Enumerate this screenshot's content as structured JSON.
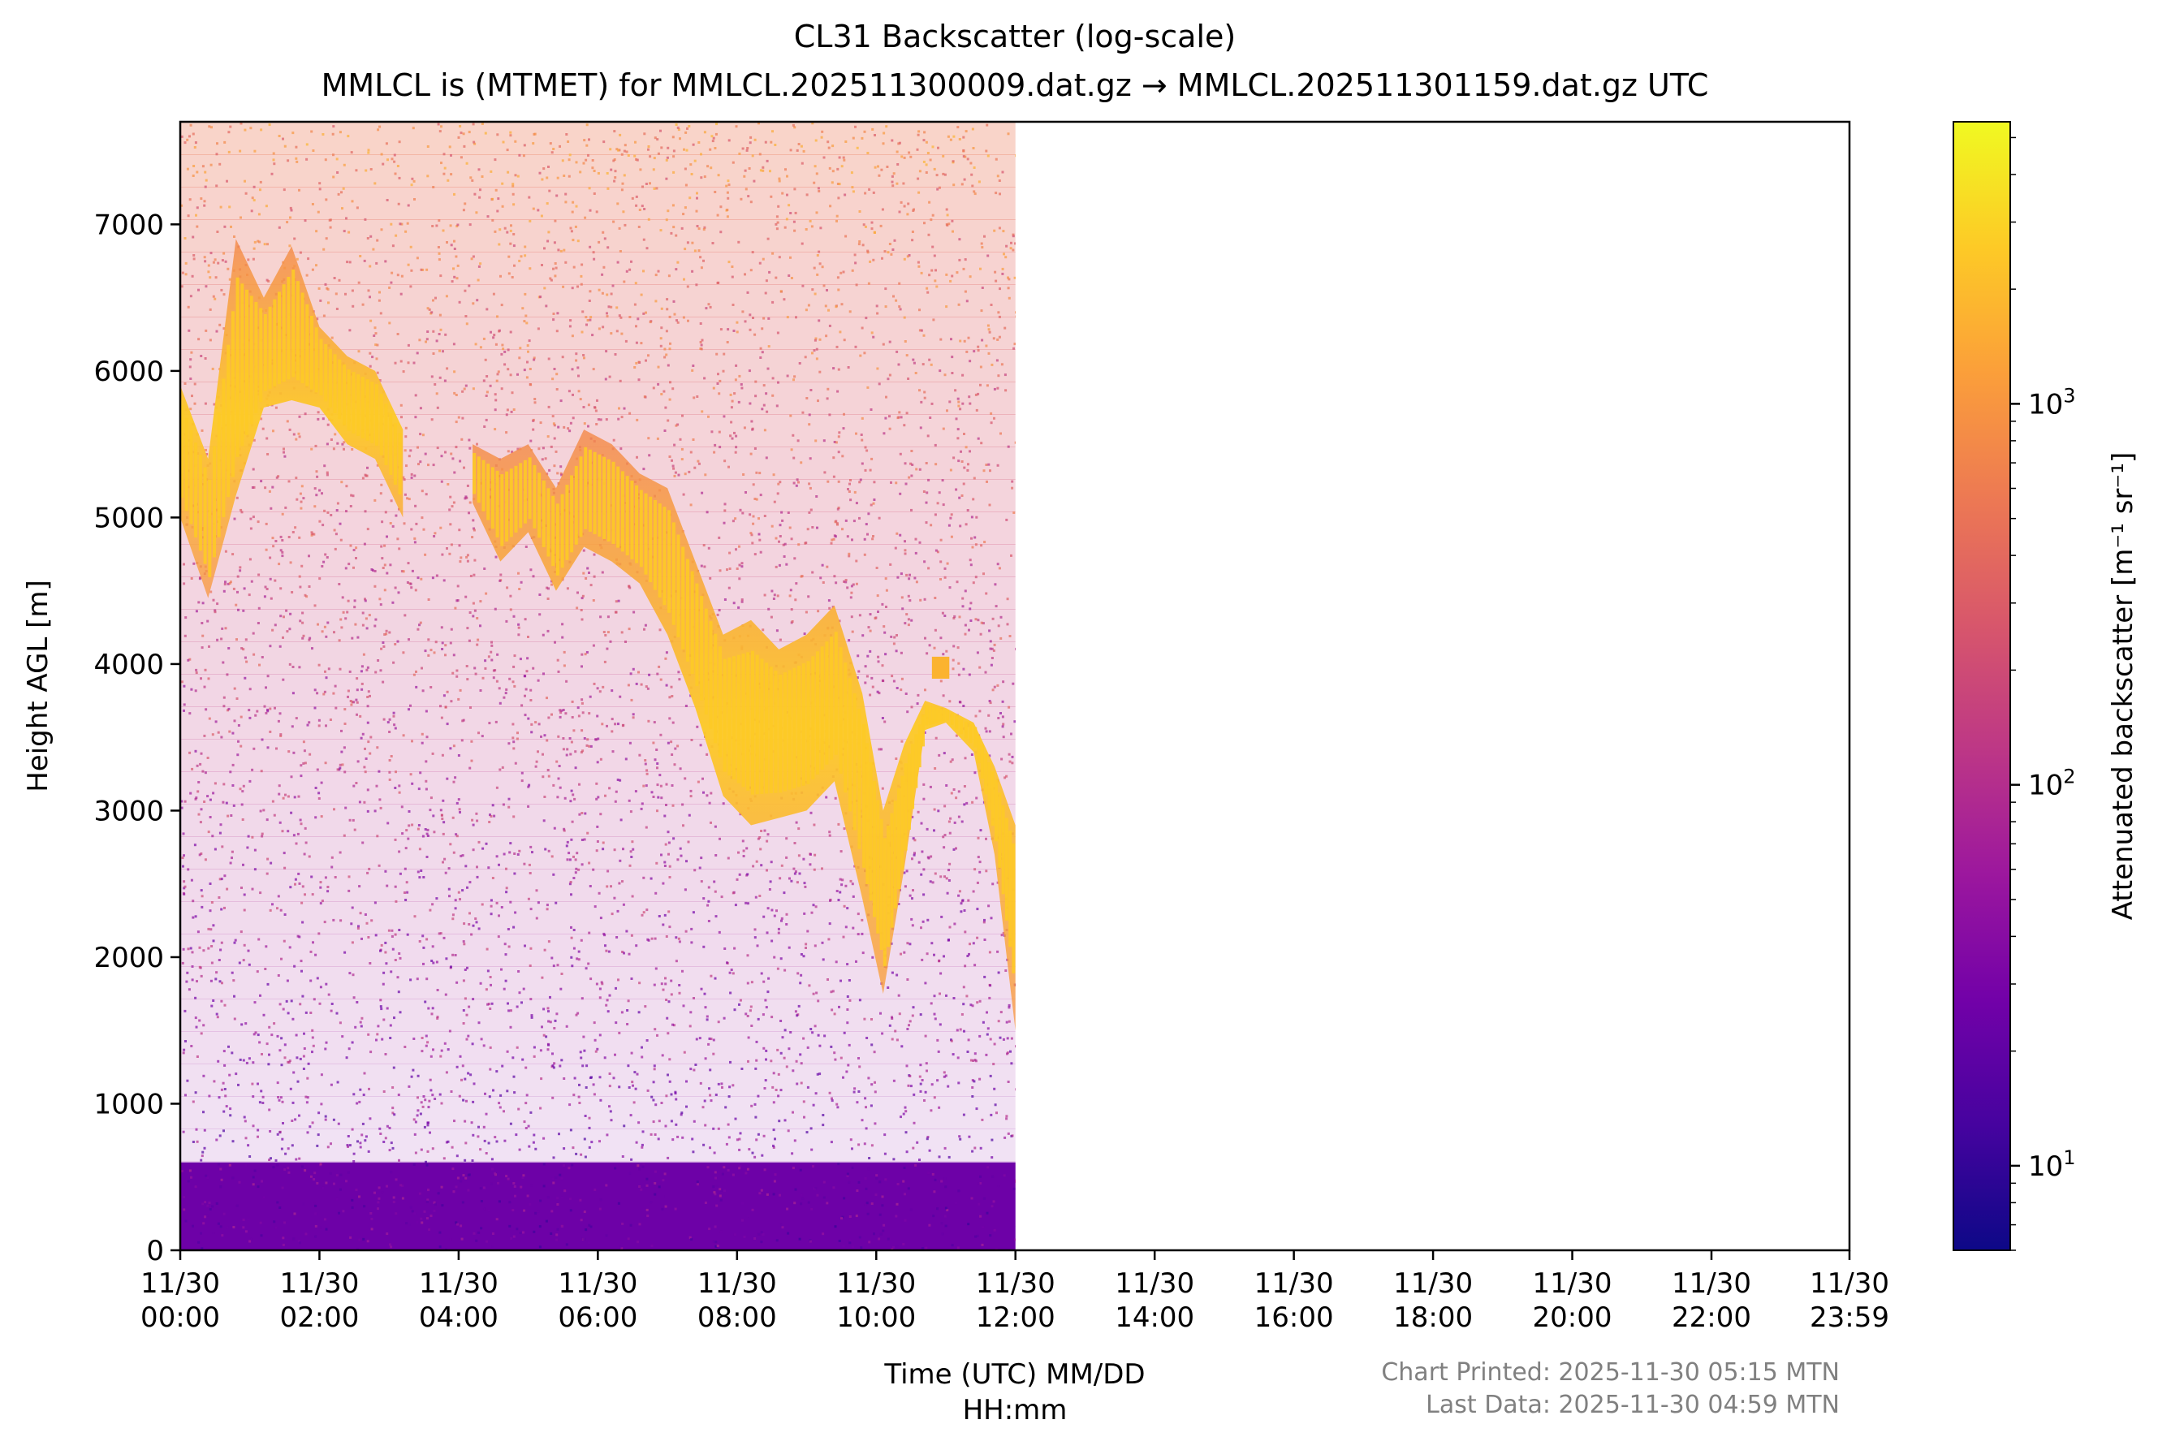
{
  "chart_data": {
    "type": "heatmap",
    "title": "CL31 Backscatter (log-scale)",
    "subtitle": "MMLCL is (MTMET) for MMLCL.202511300009.dat.gz → MMLCL.202511301159.dat.gz UTC",
    "xlabel_line1": "Time (UTC) MM/DD",
    "xlabel_line2": "HH:mm",
    "ylabel": "Height AGL [m]",
    "x_ticks": [
      {
        "date": "11/30",
        "time": "00:00",
        "hours": 0
      },
      {
        "date": "11/30",
        "time": "02:00",
        "hours": 2
      },
      {
        "date": "11/30",
        "time": "04:00",
        "hours": 4
      },
      {
        "date": "11/30",
        "time": "06:00",
        "hours": 6
      },
      {
        "date": "11/30",
        "time": "08:00",
        "hours": 8
      },
      {
        "date": "11/30",
        "time": "10:00",
        "hours": 10
      },
      {
        "date": "11/30",
        "time": "12:00",
        "hours": 12
      },
      {
        "date": "11/30",
        "time": "14:00",
        "hours": 14
      },
      {
        "date": "11/30",
        "time": "16:00",
        "hours": 16
      },
      {
        "date": "11/30",
        "time": "18:00",
        "hours": 18
      },
      {
        "date": "11/30",
        "time": "20:00",
        "hours": 20
      },
      {
        "date": "11/30",
        "time": "22:00",
        "hours": 22
      },
      {
        "date": "11/30",
        "time": "23:59",
        "hours": 23.983
      }
    ],
    "xlim_hours": [
      0,
      23.983
    ],
    "data_end_hours": 12.0,
    "y_ticks": [
      0,
      1000,
      2000,
      3000,
      4000,
      5000,
      6000,
      7000
    ],
    "ylim": [
      0,
      7700
    ],
    "colorbar": {
      "label": "Attenuated backscatter [m⁻¹ sr⁻¹]",
      "scale": "log",
      "range": [
        6,
        5500
      ],
      "colormap": "plasma",
      "stops": [
        "#0d0887",
        "#46039f",
        "#7201a8",
        "#9c179e",
        "#bd3786",
        "#d8576b",
        "#ed7953",
        "#fb9f3a",
        "#fdca26",
        "#f0f921"
      ],
      "ticks": [
        {
          "value": 10,
          "base": "10",
          "exp": "1"
        },
        {
          "value": 100,
          "base": "10",
          "exp": "2"
        },
        {
          "value": 1000,
          "base": "10",
          "exp": "3"
        }
      ]
    },
    "boundary_layer": {
      "top_m": 600,
      "value": 25
    },
    "cloud_layer": [
      {
        "hours": 0.0,
        "base_m": 5000,
        "top_m": 5900
      },
      {
        "hours": 0.4,
        "base_m": 4450,
        "top_m": 5400
      },
      {
        "hours": 0.8,
        "base_m": 5150,
        "top_m": 6900
      },
      {
        "hours": 1.2,
        "base_m": 5750,
        "top_m": 6500
      },
      {
        "hours": 1.6,
        "base_m": 5800,
        "top_m": 6850
      },
      {
        "hours": 2.0,
        "base_m": 5750,
        "top_m": 6300
      },
      {
        "hours": 2.4,
        "base_m": 5500,
        "top_m": 6100
      },
      {
        "hours": 2.8,
        "base_m": 5400,
        "top_m": 6000
      },
      {
        "hours": 3.2,
        "base_m": 5000,
        "top_m": 5600
      },
      {
        "hours": 4.2,
        "base_m": 5100,
        "top_m": 5500
      },
      {
        "hours": 4.6,
        "base_m": 4700,
        "top_m": 5400
      },
      {
        "hours": 5.0,
        "base_m": 4900,
        "top_m": 5500
      },
      {
        "hours": 5.4,
        "base_m": 4500,
        "top_m": 5200
      },
      {
        "hours": 5.8,
        "base_m": 4800,
        "top_m": 5600
      },
      {
        "hours": 6.2,
        "base_m": 4700,
        "top_m": 5500
      },
      {
        "hours": 6.6,
        "base_m": 4550,
        "top_m": 5300
      },
      {
        "hours": 7.0,
        "base_m": 4200,
        "top_m": 5200
      },
      {
        "hours": 7.4,
        "base_m": 3700,
        "top_m": 4700
      },
      {
        "hours": 7.8,
        "base_m": 3100,
        "top_m": 4200
      },
      {
        "hours": 8.2,
        "base_m": 2900,
        "top_m": 4300
      },
      {
        "hours": 8.6,
        "base_m": 2950,
        "top_m": 4100
      },
      {
        "hours": 9.0,
        "base_m": 3000,
        "top_m": 4200
      },
      {
        "hours": 9.4,
        "base_m": 3200,
        "top_m": 4400
      },
      {
        "hours": 9.8,
        "base_m": 2400,
        "top_m": 3800
      },
      {
        "hours": 10.1,
        "base_m": 1750,
        "top_m": 3000
      },
      {
        "hours": 10.4,
        "base_m": 2600,
        "top_m": 3450
      },
      {
        "hours": 10.7,
        "base_m": 3550,
        "top_m": 3750
      },
      {
        "hours": 11.0,
        "base_m": 3600,
        "top_m": 3700
      },
      {
        "hours": 11.4,
        "base_m": 3400,
        "top_m": 3600
      },
      {
        "hours": 11.7,
        "base_m": 2700,
        "top_m": 3300
      },
      {
        "hours": 12.0,
        "base_m": 1500,
        "top_m": 2900
      }
    ],
    "isolated_clouds": [
      {
        "hours": 10.9,
        "base_m": 3900,
        "top_m": 4050
      }
    ],
    "grid": false,
    "legend": "none"
  },
  "footer": {
    "printed": "Chart Printed: 2025-11-30 05:15 MTN",
    "last_data": "Last Data: 2025-11-30 04:59 MTN",
    "color": "#808080"
  }
}
